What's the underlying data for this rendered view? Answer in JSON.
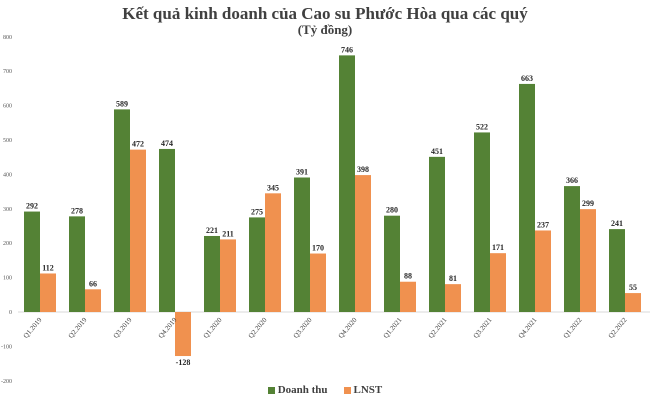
{
  "chart_data": {
    "type": "bar",
    "title": "Kết quả kinh doanh của Cao su Phước Hòa qua các quý",
    "subtitle": "(Tỷ đồng)",
    "xlabel": "",
    "ylabel": "",
    "ylim": [
      -200,
      800
    ],
    "yticks": [
      -200,
      -100,
      0,
      100,
      200,
      300,
      400,
      500,
      600,
      700,
      800
    ],
    "grid": false,
    "legend_position": "bottom",
    "categories": [
      "Q1.2019",
      "Q2.2019",
      "Q3.2019",
      "Q4.2019",
      "Q1.2020",
      "Q2.2020",
      "Q3.2020",
      "Q4.2020",
      "Q1.2021",
      "Q2.2021",
      "Q3.2021",
      "Q4.2021",
      "Q1.2022",
      "Q2.2022"
    ],
    "series": [
      {
        "name": "Doanh thu",
        "color": "#548235",
        "values": [
          292,
          278,
          589,
          474,
          221,
          275,
          391,
          746,
          280,
          451,
          522,
          663,
          366,
          241
        ]
      },
      {
        "name": "LNST",
        "color": "#F0914F",
        "values": [
          112,
          66,
          472,
          -128,
          211,
          345,
          170,
          398,
          88,
          81,
          171,
          237,
          299,
          55
        ]
      }
    ]
  }
}
